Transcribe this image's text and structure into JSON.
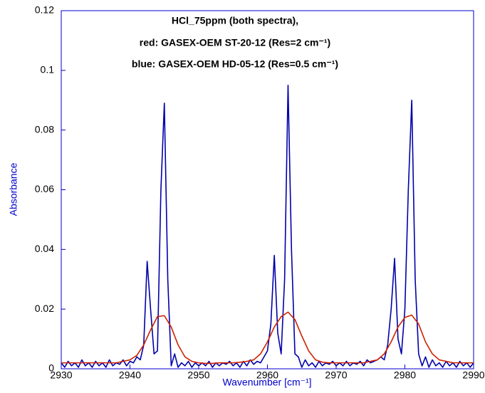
{
  "chart_data": {
    "type": "line",
    "title_lines": [
      "HCl_75ppm (both spectra),",
      "red: GASEX-OEM ST-20-12 (Res=2 cm⁻¹)",
      "blue: GASEX-OEM HD-05-12 (Res=0.5 cm⁻¹)"
    ],
    "x_label": "Wavenumber [cm⁻¹]",
    "y_label": "Absorbance",
    "xlim": [
      2930,
      2990
    ],
    "xticks": [
      2930,
      2940,
      2950,
      2960,
      2970,
      2980,
      2990
    ],
    "ylim": [
      0,
      0.12
    ],
    "yticks": [
      0,
      0.02,
      0.04,
      0.06,
      0.08,
      0.1,
      0.12
    ],
    "grid": false,
    "series": [
      {
        "color": "#0000aa",
        "x": [
          2930,
          2930.5,
          2931,
          2931.5,
          2932,
          2932.5,
          2933,
          2933.5,
          2934,
          2934.5,
          2935,
          2935.5,
          2936,
          2936.5,
          2937,
          2937.5,
          2938,
          2938.5,
          2939,
          2939.5,
          2940,
          2940.5,
          2941,
          2941.5,
          2942,
          2942.5,
          2943,
          2943.5,
          2944,
          2944.5,
          2945,
          2945.5,
          2946,
          2946.5,
          2947,
          2947.5,
          2948,
          2948.5,
          2949,
          2949.5,
          2950,
          2950.5,
          2951,
          2951.5,
          2952,
          2952.5,
          2953,
          2953.5,
          2954,
          2954.5,
          2955,
          2955.5,
          2956,
          2956.5,
          2957,
          2957.5,
          2958,
          2958.5,
          2959,
          2959.5,
          2960,
          2960.5,
          2961,
          2961.5,
          2962,
          2962.5,
          2963,
          2963.5,
          2964,
          2964.5,
          2965,
          2965.5,
          2966,
          2966.5,
          2967,
          2967.5,
          2968,
          2968.5,
          2969,
          2969.5,
          2970,
          2970.5,
          2971,
          2971.5,
          2972,
          2972.5,
          2973,
          2973.5,
          2974,
          2974.5,
          2975,
          2975.5,
          2976,
          2976.5,
          2977,
          2977.5,
          2978,
          2978.5,
          2979,
          2979.5,
          2980,
          2980.5,
          2981,
          2981.5,
          2982,
          2982.5,
          2983,
          2983.5,
          2984,
          2984.5,
          2985,
          2985.5,
          2986,
          2986.5,
          2987,
          2987.5,
          2988,
          2988.5,
          2989,
          2989.5,
          2990
        ],
        "values": [
          0.002,
          0.0005,
          0.0025,
          0.001,
          0.002,
          0.0005,
          0.003,
          0.001,
          0.002,
          0.0005,
          0.0025,
          0.001,
          0.002,
          0.0005,
          0.003,
          0.001,
          0.002,
          0.0015,
          0.003,
          0.001,
          0.0025,
          0.002,
          0.004,
          0.003,
          0.008,
          0.036,
          0.02,
          0.005,
          0.006,
          0.06,
          0.089,
          0.03,
          0.001,
          0.005,
          0.0005,
          0.002,
          0.001,
          0.0025,
          0.0005,
          0.002,
          0.001,
          0.002,
          0.001,
          0.0025,
          0.0005,
          0.002,
          0.001,
          0.002,
          0.0015,
          0.0025,
          0.001,
          0.002,
          0.0005,
          0.0025,
          0.001,
          0.003,
          0.0015,
          0.0025,
          0.002,
          0.004,
          0.006,
          0.015,
          0.038,
          0.012,
          0.005,
          0.03,
          0.095,
          0.04,
          0.005,
          0.004,
          0.0005,
          0.003,
          0.001,
          0.002,
          0.0005,
          0.0025,
          0.001,
          0.002,
          0.0015,
          0.0025,
          0.001,
          0.002,
          0.001,
          0.0025,
          0.001,
          0.002,
          0.0015,
          0.0025,
          0.001,
          0.003,
          0.002,
          0.0025,
          0.003,
          0.004,
          0.003,
          0.008,
          0.02,
          0.037,
          0.01,
          0.005,
          0.02,
          0.06,
          0.09,
          0.03,
          0.005,
          0.001,
          0.004,
          0.0005,
          0.003,
          0.001,
          0.002,
          0.0005,
          0.0025,
          0.001,
          0.002,
          0.0005,
          0.0025,
          0.001,
          0.002,
          0.0005,
          0.002
        ]
      },
      {
        "color": "#cc2200",
        "x": [
          2930,
          2931,
          2932,
          2933,
          2934,
          2935,
          2936,
          2937,
          2938,
          2939,
          2940,
          2941,
          2942,
          2943,
          2944,
          2945,
          2946,
          2947,
          2948,
          2949,
          2950,
          2951,
          2952,
          2953,
          2954,
          2955,
          2956,
          2957,
          2958,
          2959,
          2960,
          2961,
          2962,
          2963,
          2964,
          2965,
          2966,
          2967,
          2968,
          2969,
          2970,
          2971,
          2972,
          2973,
          2974,
          2975,
          2976,
          2977,
          2978,
          2979,
          2980,
          2981,
          2982,
          2983,
          2984,
          2985,
          2986,
          2987,
          2988,
          2989,
          2990
        ],
        "values": [
          0.002,
          0.002,
          0.002,
          0.002,
          0.002,
          0.002,
          0.002,
          0.002,
          0.002,
          0.0025,
          0.003,
          0.0045,
          0.008,
          0.013,
          0.0175,
          0.0178,
          0.014,
          0.008,
          0.004,
          0.0025,
          0.002,
          0.0018,
          0.0018,
          0.002,
          0.002,
          0.002,
          0.0022,
          0.0025,
          0.003,
          0.005,
          0.009,
          0.014,
          0.0175,
          0.019,
          0.0165,
          0.011,
          0.006,
          0.003,
          0.0022,
          0.002,
          0.002,
          0.002,
          0.002,
          0.002,
          0.002,
          0.0025,
          0.003,
          0.005,
          0.009,
          0.014,
          0.0172,
          0.018,
          0.015,
          0.009,
          0.005,
          0.003,
          0.0025,
          0.002,
          0.002,
          0.002,
          0.002
        ]
      }
    ]
  }
}
